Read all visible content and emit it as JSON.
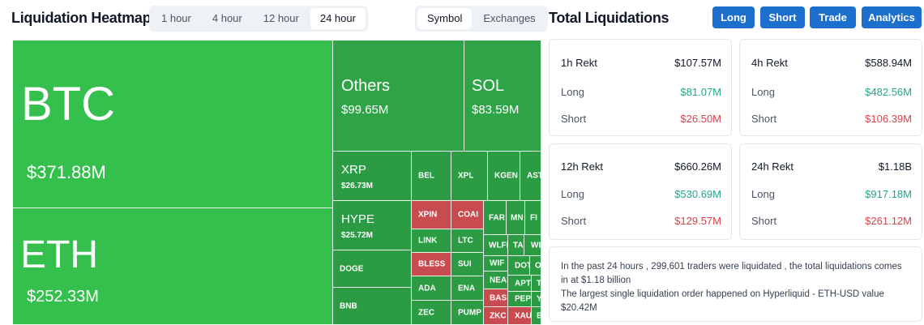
{
  "heatmap": {
    "title": "Liquidation Heatmap",
    "time_tabs": [
      {
        "label": "1 hour",
        "active": false
      },
      {
        "label": "4 hour",
        "active": false
      },
      {
        "label": "12 hour",
        "active": false
      },
      {
        "label": "24 hour",
        "active": true
      }
    ],
    "group_tabs": [
      {
        "label": "Symbol",
        "active": true
      },
      {
        "label": "Exchanges",
        "active": false
      }
    ],
    "tiles": {
      "btc": {
        "name": "BTC",
        "value": "$371.88M"
      },
      "eth": {
        "name": "ETH",
        "value": "$252.33M"
      },
      "others": {
        "name": "Others",
        "value": "$99.65M"
      },
      "sol": {
        "name": "SOL",
        "value": "$83.59M"
      },
      "xrp": {
        "name": "XRP",
        "value": "$26.73M"
      },
      "hype": {
        "name": "HYPE",
        "value": "$25.72M"
      },
      "doge": {
        "name": "DOGE"
      },
      "bnb": {
        "name": "BNB"
      },
      "bel": {
        "name": "BEL"
      },
      "xpl": {
        "name": "XPL"
      },
      "kgen": {
        "name": "KGEN"
      },
      "ast": {
        "name": "AST"
      },
      "xpin": {
        "name": "XPIN"
      },
      "coai": {
        "name": "COAI"
      },
      "far": {
        "name": "FAR"
      },
      "mn": {
        "name": "MN"
      },
      "fi": {
        "name": "FI"
      },
      "link": {
        "name": "LINK"
      },
      "ltc": {
        "name": "LTC"
      },
      "wlfi": {
        "name": "WLFI"
      },
      "ta": {
        "name": "TA"
      },
      "wi": {
        "name": "WI"
      },
      "bless": {
        "name": "BLESS"
      },
      "sui": {
        "name": "SUI"
      },
      "wif": {
        "name": "WIF"
      },
      "dot": {
        "name": "DOT"
      },
      "o": {
        "name": "O"
      },
      "near": {
        "name": "NEAI"
      },
      "apt": {
        "name": "APT"
      },
      "t": {
        "name": "T"
      },
      "ada": {
        "name": "ADA"
      },
      "ena": {
        "name": "ENA"
      },
      "bas": {
        "name": "BAS"
      },
      "pep": {
        "name": "PEP"
      },
      "y": {
        "name": "Y"
      },
      "zec": {
        "name": "ZEC"
      },
      "pump": {
        "name": "PUMP"
      },
      "zkc": {
        "name": "ZKC"
      },
      "xau": {
        "name": "XAU"
      },
      "b": {
        "name": "B"
      }
    }
  },
  "liquidations": {
    "title": "Total Liquidations",
    "buttons": {
      "long": "Long",
      "short": "Short",
      "trade": "Trade",
      "analytics": "Analytics"
    },
    "cards": {
      "h1": {
        "title": "1h Rekt",
        "total": "$107.57M",
        "long_label": "Long",
        "long": "$81.07M",
        "short_label": "Short",
        "short": "$26.50M"
      },
      "h4": {
        "title": "4h Rekt",
        "total": "$588.94M",
        "long_label": "Long",
        "long": "$482.56M",
        "short_label": "Short",
        "short": "$106.39M"
      },
      "h12": {
        "title": "12h Rekt",
        "total": "$660.26M",
        "long_label": "Long",
        "long": "$530.69M",
        "short_label": "Short",
        "short": "$129.57M"
      },
      "h24": {
        "title": "24h Rekt",
        "total": "$1.18B",
        "long_label": "Long",
        "long": "$917.18M",
        "short_label": "Short",
        "short": "$261.12M"
      }
    },
    "summary": {
      "line1": "In the past 24 hours , 299,601 traders were liquidated , the total liquidations comes in at $1.18 billion",
      "line2": "The largest single liquidation order happened on Hyperliquid - ETH-USD value $20.42M"
    }
  },
  "colors": {
    "green_primary": "#35c04e",
    "green_secondary": "#2fa447",
    "red_tile": "#c84b4f",
    "accent_button": "#1d6fce",
    "long_text": "#22a68a",
    "short_text": "#d9434e"
  }
}
